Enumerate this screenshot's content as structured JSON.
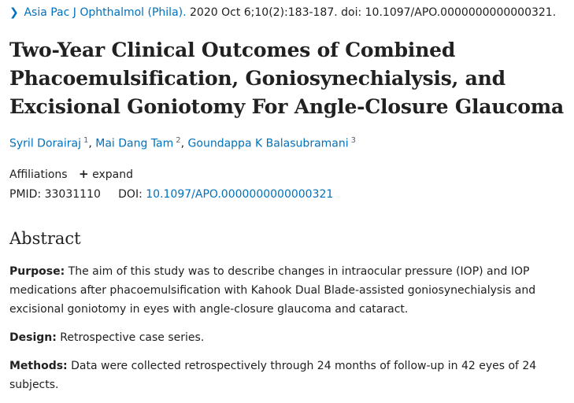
{
  "citation": {
    "chevron_icon": "chevron-right-icon",
    "journal": "Asia Pac J Ophthalmol (Phila).",
    "details": " 2020 Oct 6;10(2):183-187. doi: 10.1097/APO.0000000000000321."
  },
  "article": {
    "title": "Two-Year Clinical Outcomes of Combined Phacoemulsification, Goniosynechialysis, and Excisional Goniotomy For Angle-Closure Glaucoma"
  },
  "authors": [
    {
      "name": "Syril Dorairaj",
      "sup": "1",
      "sep": ", "
    },
    {
      "name": "Mai Dang Tam",
      "sup": "2",
      "sep": ", "
    },
    {
      "name": "Goundappa K Balasubramani",
      "sup": "3",
      "sep": ""
    }
  ],
  "affiliations": {
    "label": "Affiliations",
    "plus_icon": "plus-icon",
    "toggle": "expand"
  },
  "identifiers": {
    "pmid_label": "PMID:",
    "pmid": "33031110",
    "doi_label": "DOI:",
    "doi": "10.1097/APO.0000000000000321"
  },
  "abstract": {
    "heading": "Abstract",
    "sections": [
      {
        "label": "Purpose:",
        "text": " The aim of this study was to describe changes in intraocular pressure (IOP) and IOP medications after phacoemulsification with Kahook Dual Blade-assisted goniosynechialysis and excisional goniotomy in eyes with angle-closure glaucoma and cataract."
      },
      {
        "label": "Design:",
        "text": " Retrospective case series."
      },
      {
        "label": "Methods:",
        "text": " Data were collected retrospectively through 24 months of follow-up in 42 eyes of 24 subjects."
      }
    ]
  }
}
